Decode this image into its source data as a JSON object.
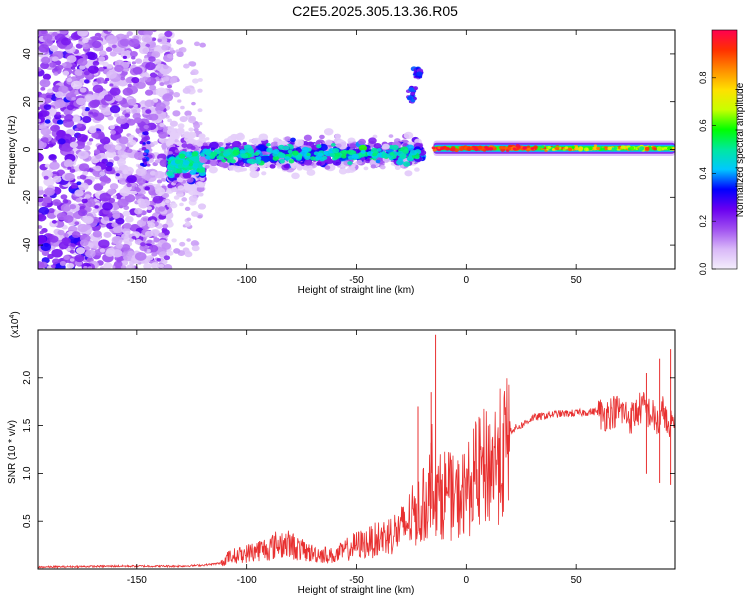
{
  "title": "C2E5.2025.305.13.36.R05",
  "chart_data": [
    {
      "type": "heatmap",
      "name": "spectrogram",
      "xlabel": "Height of straight line (km)",
      "ylabel": "Frequency (Hz)",
      "xlim": [
        -195,
        95
      ],
      "ylim": [
        -50,
        50
      ],
      "xticks": [
        -150,
        -100,
        -50,
        0,
        50
      ],
      "xtick_labels": [
        "-150",
        "-100",
        "-50",
        "0",
        "50"
      ],
      "yticks": [
        -40,
        -20,
        0,
        20,
        40
      ],
      "ytick_labels": [
        "-40",
        "-20",
        "0",
        "20",
        "40"
      ],
      "colorbar": {
        "label": "Normalized spectral amplitude",
        "range": [
          0,
          1
        ],
        "ticks": [
          0.0,
          0.2,
          0.4,
          0.6,
          0.8
        ],
        "tick_labels": [
          "0.0",
          "0.2",
          "0.4",
          "0.6",
          "0.8"
        ],
        "colors": [
          "#f4eefc",
          "#d9b8f8",
          "#a050f0",
          "#6a00f0",
          "#0000ff",
          "#00c8ff",
          "#00e8a0",
          "#00ff00",
          "#c8ff00",
          "#ffe000",
          "#ff8c00",
          "#ff3000",
          "#ff0050"
        ]
      },
      "segments": [
        {
          "name": "noise",
          "x": [
            -195,
            -135
          ],
          "center_hz": 0,
          "spread_hz": 50,
          "amplitude": 0.25
        },
        {
          "name": "onset",
          "x": [
            -135,
            -120
          ],
          "center_hz": -6,
          "spread_hz": 10,
          "amplitude": 0.3
        },
        {
          "name": "broad-band",
          "x": [
            -120,
            -20
          ],
          "center_hz": -2,
          "spread_hz": 6,
          "amplitude": 0.35
        },
        {
          "name": "strong-tone",
          "x": [
            -15,
            95
          ],
          "center_hz": 0.5,
          "spread_hz": 1.5,
          "amplitude": 0.95
        }
      ],
      "features": [
        {
          "name": "vertical-streak",
          "x": -146,
          "hz": [
            -8,
            8
          ]
        },
        {
          "name": "blob",
          "x": -22,
          "hz": [
            30,
            34
          ]
        },
        {
          "name": "streak",
          "x": -25,
          "hz": [
            20,
            26
          ]
        }
      ]
    },
    {
      "type": "line",
      "name": "snr",
      "xlabel": "Height of straight line (km)",
      "ylabel": "SNR (10 * v/v)",
      "scale_label": "(x10",
      "scale_exp": "4",
      "scale_close": ")",
      "xlim": [
        -195,
        95
      ],
      "ylim": [
        0,
        2.5
      ],
      "xticks": [
        -150,
        -100,
        -50,
        0,
        50
      ],
      "xtick_labels": [
        "-150",
        "-100",
        "-50",
        "0",
        "50"
      ],
      "yticks": [
        0.5,
        1.0,
        1.5,
        2.0
      ],
      "ytick_labels": [
        "0.5",
        "1.0",
        "1.5",
        "2.0"
      ],
      "color": "#e83030",
      "series": [
        {
          "name": "SNR",
          "x": [
            -195,
            -160,
            -130,
            -120,
            -112,
            -108,
            -100,
            -95,
            -90,
            -85,
            -80,
            -75,
            -70,
            -65,
            -60,
            -55,
            -50,
            -45,
            -40,
            -35,
            -30,
            -25,
            -20,
            -17,
            -15,
            -13,
            -10,
            -5,
            0,
            5,
            10,
            15,
            20,
            25,
            30,
            35,
            40,
            50,
            60,
            62,
            65,
            70,
            75,
            80,
            85,
            88,
            90,
            92,
            95
          ],
          "y": [
            0.02,
            0.03,
            0.03,
            0.04,
            0.06,
            0.14,
            0.18,
            0.22,
            0.24,
            0.3,
            0.28,
            0.22,
            0.18,
            0.17,
            0.15,
            0.22,
            0.28,
            0.3,
            0.35,
            0.4,
            0.45,
            0.6,
            0.7,
            0.9,
            1.2,
            0.8,
            0.9,
            0.8,
            0.9,
            1.1,
            1.2,
            1.3,
            1.45,
            1.5,
            1.58,
            1.6,
            1.62,
            1.63,
            1.65,
            1.6,
            1.64,
            1.66,
            1.58,
            1.7,
            1.6,
            1.5,
            1.7,
            1.4,
            1.6
          ]
        }
      ],
      "peaks": [
        {
          "x": -14,
          "y": 2.45
        },
        {
          "x": -16,
          "y": 1.85
        },
        {
          "x": -22,
          "y": 1.7
        },
        {
          "x": 93,
          "y": 2.3
        },
        {
          "x": 88,
          "y": 2.2
        },
        {
          "x": 82,
          "y": 2.05
        }
      ]
    }
  ]
}
